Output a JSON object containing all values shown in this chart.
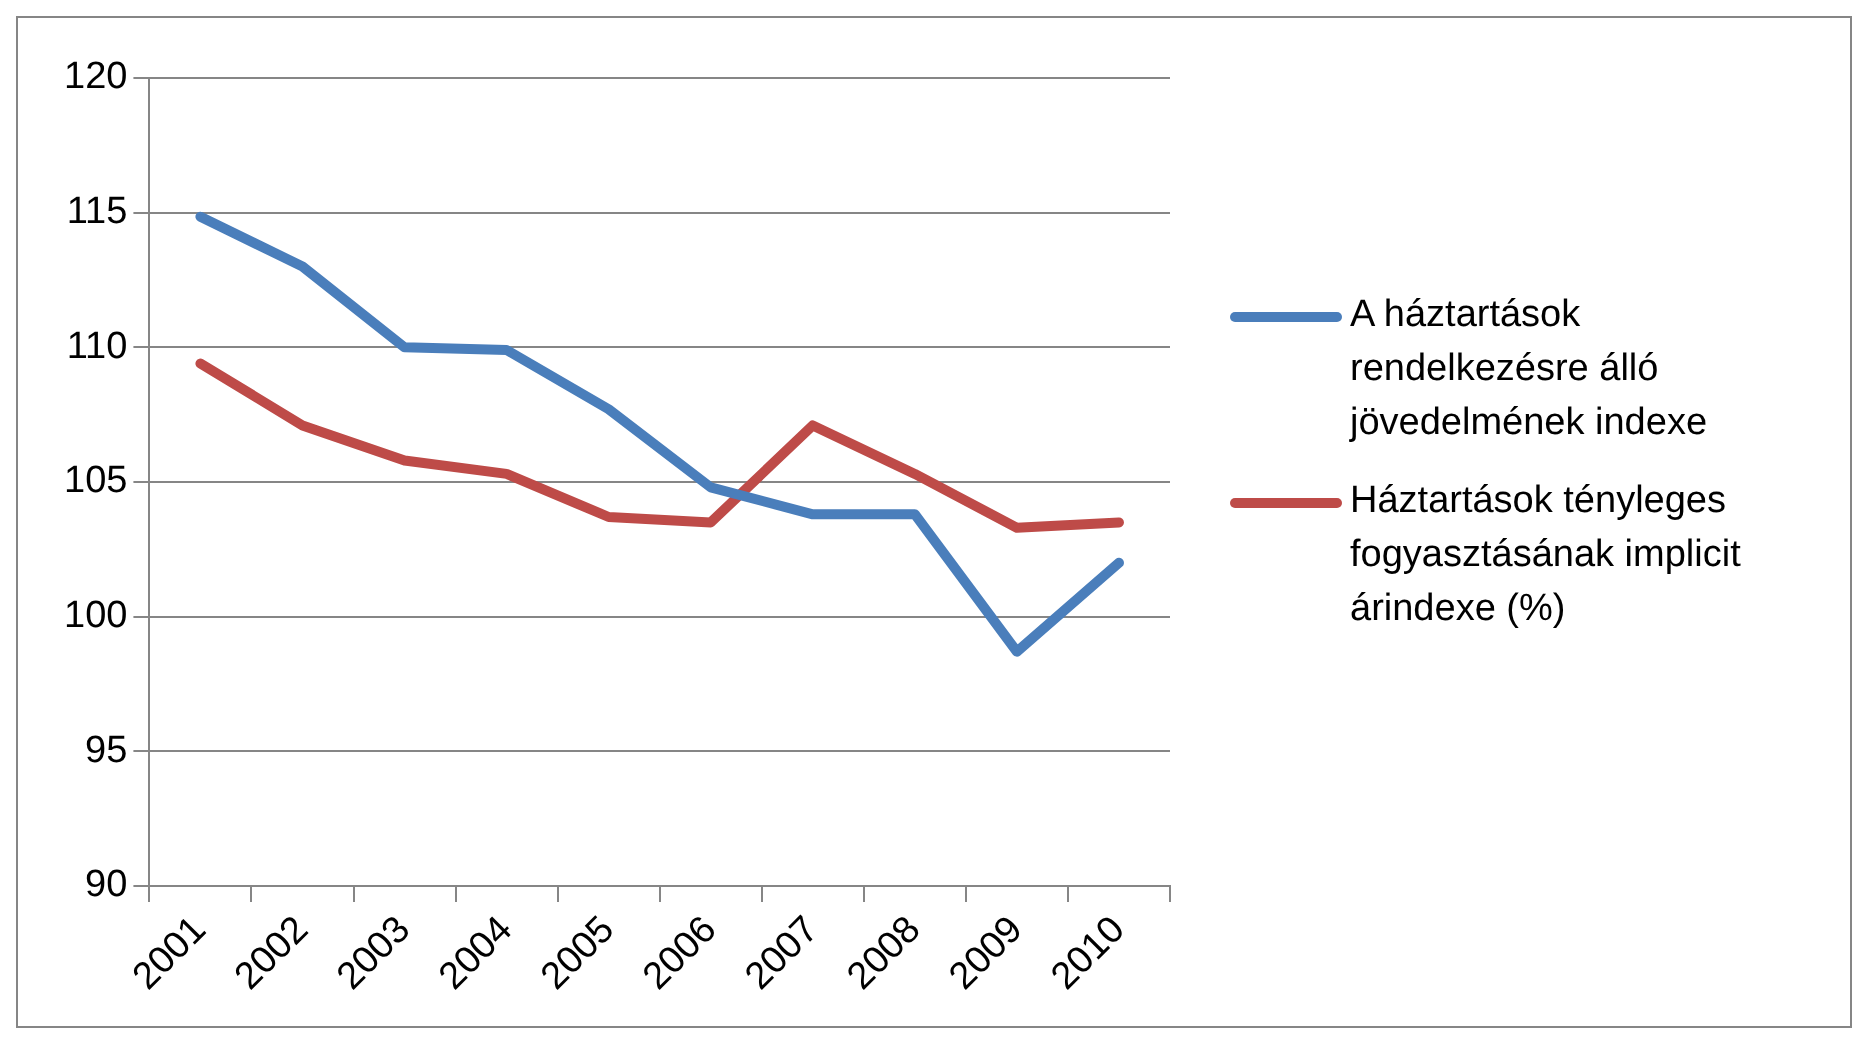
{
  "chart_data": {
    "type": "line",
    "categories": [
      "2001",
      "2002",
      "2003",
      "2004",
      "2005",
      "2006",
      "2007",
      "2008",
      "2009",
      "2010"
    ],
    "series": [
      {
        "name": "A háztartások rendelkezésre álló jövedelmének indexe",
        "color": "#4a7ebb",
        "values": [
          114.85,
          113.0,
          110.0,
          109.9,
          107.7,
          104.8,
          103.8,
          103.8,
          98.7,
          102.0
        ]
      },
      {
        "name": "Háztartások tényleges fogyasztásának implicit árindexe (%)",
        "color": "#be4b48",
        "values": [
          109.4,
          107.1,
          105.8,
          105.3,
          103.7,
          103.5,
          107.1,
          105.3,
          103.3,
          103.5
        ]
      }
    ],
    "ylim": [
      90,
      120
    ],
    "yticks": [
      90,
      95,
      100,
      105,
      110,
      115,
      120
    ],
    "grid": "y",
    "legend": "right",
    "marker": "none",
    "line_style": "solid"
  }
}
